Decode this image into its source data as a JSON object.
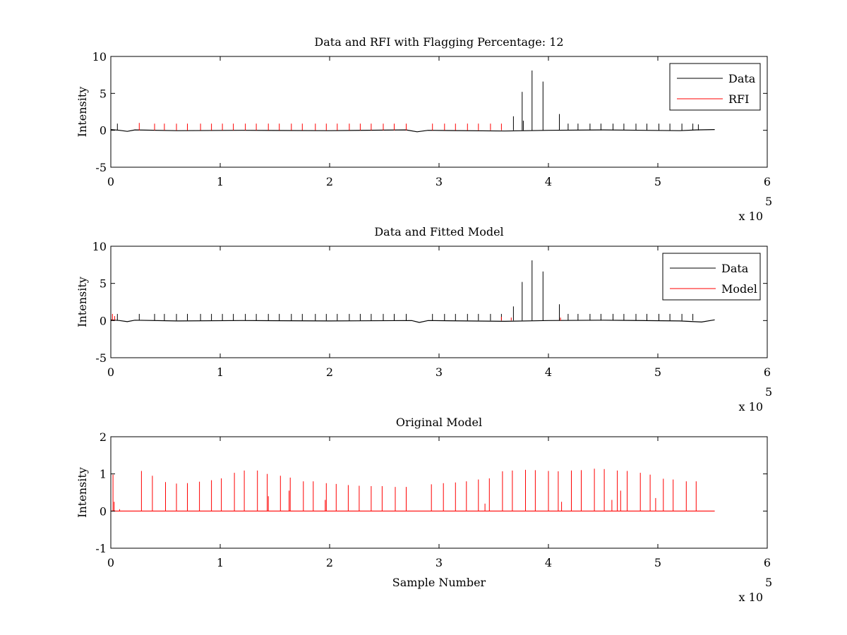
{
  "figure": {
    "background": "#ffffff",
    "colors": {
      "data": "#000000",
      "rfi": "#ff0000",
      "model": "#ff0000"
    }
  },
  "chart_data": [
    {
      "type": "line",
      "title": "Data and RFI with Flagging Percentage: 12",
      "xlabel": "",
      "ylabel": "Intensity",
      "xlim": [
        0,
        600000
      ],
      "ylim": [
        -5,
        10
      ],
      "xticks": [
        0,
        1,
        2,
        3,
        4,
        5,
        6
      ],
      "yticks": [
        -5,
        0,
        5,
        10
      ],
      "x_exponent_label": "x 10",
      "x_exponent_power": "5",
      "legend": {
        "position": "top-right",
        "entries": [
          "Data",
          "RFI"
        ]
      },
      "grid": false,
      "series": [
        {
          "name": "Data",
          "color": "#000000",
          "baseline": [
            [
              0,
              0.1
            ],
            [
              8000,
              0
            ],
            [
              15000,
              -0.15
            ],
            [
              22000,
              0.05
            ],
            [
              60000,
              -0.05
            ],
            [
              120000,
              0
            ],
            [
              200000,
              -0.05
            ],
            [
              270000,
              0.05
            ],
            [
              280000,
              -0.2
            ],
            [
              290000,
              0
            ],
            [
              360000,
              -0.1
            ],
            [
              400000,
              0
            ],
            [
              450000,
              0.05
            ],
            [
              520000,
              -0.05
            ],
            [
              535000,
              0.05
            ],
            [
              552000,
              0.1
            ]
          ],
          "spikes": [
            [
              6000,
              0.9
            ],
            [
              368000,
              1.9
            ],
            [
              376000,
              5.2
            ],
            [
              377000,
              1.3
            ],
            [
              385000,
              8.1
            ],
            [
              395000,
              6.6
            ],
            [
              410000,
              2.2
            ],
            [
              418000,
              0.9
            ],
            [
              427000,
              0.9
            ],
            [
              438000,
              0.9
            ],
            [
              448000,
              0.9
            ],
            [
              459000,
              0.9
            ],
            [
              469000,
              0.9
            ],
            [
              480000,
              0.9
            ],
            [
              490000,
              0.9
            ],
            [
              501000,
              0.9
            ],
            [
              511000,
              0.9
            ],
            [
              522000,
              0.9
            ],
            [
              532000,
              0.9
            ],
            [
              537000,
              0.8
            ]
          ]
        },
        {
          "name": "RFI",
          "color": "#ff0000",
          "spikes": [
            [
              26000,
              1.0
            ],
            [
              40000,
              0.9
            ],
            [
              49000,
              0.9
            ],
            [
              60000,
              0.9
            ],
            [
              70000,
              0.9
            ],
            [
              82000,
              0.9
            ],
            [
              92000,
              0.9
            ],
            [
              102000,
              0.9
            ],
            [
              112000,
              0.9
            ],
            [
              123000,
              0.9
            ],
            [
              133000,
              0.9
            ],
            [
              144000,
              0.9
            ],
            [
              154000,
              0.9
            ],
            [
              165000,
              0.9
            ],
            [
              175000,
              0.9
            ],
            [
              187000,
              0.9
            ],
            [
              197000,
              0.9
            ],
            [
              207000,
              0.9
            ],
            [
              218000,
              0.9
            ],
            [
              228000,
              0.9
            ],
            [
              238000,
              0.9
            ],
            [
              249000,
              0.9
            ],
            [
              259000,
              0.9
            ],
            [
              270000,
              0.9
            ],
            [
              294000,
              0.9
            ],
            [
              305000,
              0.9
            ],
            [
              315000,
              0.9
            ],
            [
              326000,
              0.9
            ],
            [
              336000,
              0.9
            ],
            [
              347000,
              0.9
            ],
            [
              357000,
              0.9
            ]
          ]
        }
      ]
    },
    {
      "type": "line",
      "title": "Data and Fitted Model",
      "xlabel": "",
      "ylabel": "Intensity",
      "xlim": [
        0,
        600000
      ],
      "ylim": [
        -5,
        10
      ],
      "xticks": [
        0,
        1,
        2,
        3,
        4,
        5,
        6
      ],
      "yticks": [
        -5,
        0,
        5,
        10
      ],
      "x_exponent_label": "x 10",
      "x_exponent_power": "5",
      "legend": {
        "position": "top-right",
        "entries": [
          "Data",
          "Model"
        ]
      },
      "grid": false,
      "series": [
        {
          "name": "Data",
          "color": "#000000",
          "baseline": [
            [
              0,
              0.1
            ],
            [
              8000,
              0
            ],
            [
              15000,
              -0.15
            ],
            [
              22000,
              0.05
            ],
            [
              60000,
              -0.05
            ],
            [
              120000,
              0
            ],
            [
              200000,
              -0.05
            ],
            [
              275000,
              0
            ],
            [
              282000,
              -0.25
            ],
            [
              290000,
              0
            ],
            [
              360000,
              -0.1
            ],
            [
              400000,
              0
            ],
            [
              450000,
              0.05
            ],
            [
              520000,
              -0.05
            ],
            [
              540000,
              -0.2
            ],
            [
              552000,
              0.1
            ]
          ],
          "spikes": [
            [
              6000,
              0.9
            ],
            [
              26000,
              0.9
            ],
            [
              40000,
              0.9
            ],
            [
              49000,
              0.9
            ],
            [
              60000,
              0.9
            ],
            [
              70000,
              0.9
            ],
            [
              82000,
              0.9
            ],
            [
              92000,
              0.9
            ],
            [
              102000,
              0.9
            ],
            [
              112000,
              0.9
            ],
            [
              123000,
              0.9
            ],
            [
              133000,
              0.9
            ],
            [
              144000,
              0.9
            ],
            [
              154000,
              0.9
            ],
            [
              165000,
              0.9
            ],
            [
              175000,
              0.9
            ],
            [
              187000,
              0.9
            ],
            [
              197000,
              0.9
            ],
            [
              207000,
              0.9
            ],
            [
              218000,
              0.9
            ],
            [
              228000,
              0.9
            ],
            [
              238000,
              0.9
            ],
            [
              249000,
              0.9
            ],
            [
              259000,
              0.9
            ],
            [
              270000,
              0.9
            ],
            [
              294000,
              0.9
            ],
            [
              305000,
              0.9
            ],
            [
              315000,
              0.9
            ],
            [
              326000,
              0.9
            ],
            [
              336000,
              0.9
            ],
            [
              347000,
              0.9
            ],
            [
              357000,
              0.9
            ],
            [
              368000,
              1.9
            ],
            [
              376000,
              5.2
            ],
            [
              385000,
              8.1
            ],
            [
              395000,
              6.6
            ],
            [
              410000,
              2.2
            ],
            [
              418000,
              0.9
            ],
            [
              427000,
              0.9
            ],
            [
              438000,
              0.9
            ],
            [
              448000,
              0.9
            ],
            [
              459000,
              0.9
            ],
            [
              469000,
              0.9
            ],
            [
              480000,
              0.9
            ],
            [
              490000,
              0.9
            ],
            [
              501000,
              0.9
            ],
            [
              511000,
              0.9
            ],
            [
              522000,
              0.9
            ],
            [
              532000,
              0.9
            ]
          ]
        },
        {
          "name": "Model",
          "color": "#ff0000",
          "spikes": [
            [
              1500,
              0.9
            ],
            [
              3500,
              0.6
            ],
            [
              357000,
              0.5
            ],
            [
              366000,
              0.4
            ],
            [
              411000,
              0.4
            ]
          ]
        }
      ]
    },
    {
      "type": "line",
      "title": "Original Model",
      "xlabel": "Sample Number",
      "ylabel": "Intensity",
      "xlim": [
        0,
        600000
      ],
      "ylim": [
        -1,
        2
      ],
      "xticks": [
        0,
        1,
        2,
        3,
        4,
        5,
        6
      ],
      "yticks": [
        -1,
        0,
        1,
        2
      ],
      "x_exponent_label": "x 10",
      "x_exponent_power": "5",
      "legend": null,
      "grid": false,
      "series": [
        {
          "color": "#ff0000",
          "baseline": [
            [
              0,
              0
            ],
            [
              552000,
              0
            ]
          ],
          "spikes": [
            [
              2000,
              0.98
            ],
            [
              3000,
              0.25
            ],
            [
              8000,
              0.05
            ],
            [
              28000,
              1.08
            ],
            [
              38000,
              0.95
            ],
            [
              50000,
              0.78
            ],
            [
              60000,
              0.74
            ],
            [
              70000,
              0.75
            ],
            [
              81000,
              0.79
            ],
            [
              92000,
              0.83
            ],
            [
              101000,
              0.88
            ],
            [
              113000,
              1.03
            ],
            [
              122000,
              1.09
            ],
            [
              134000,
              1.09
            ],
            [
              143000,
              1.0
            ],
            [
              155000,
              0.95
            ],
            [
              164000,
              0.9
            ],
            [
              176000,
              0.8
            ],
            [
              185000,
              0.8
            ],
            [
              197000,
              0.75
            ],
            [
              206000,
              0.73
            ],
            [
              217000,
              0.7
            ],
            [
              227000,
              0.68
            ],
            [
              238000,
              0.67
            ],
            [
              248000,
              0.67
            ],
            [
              260000,
              0.65
            ],
            [
              270000,
              0.65
            ],
            [
              293000,
              0.72
            ],
            [
              304000,
              0.75
            ],
            [
              315000,
              0.77
            ],
            [
              325000,
              0.8
            ],
            [
              336000,
              0.85
            ],
            [
              346000,
              0.88
            ],
            [
              358000,
              1.07
            ],
            [
              367000,
              1.09
            ],
            [
              379000,
              1.11
            ],
            [
              388000,
              1.1
            ],
            [
              400000,
              1.08
            ],
            [
              409000,
              1.07
            ],
            [
              421000,
              1.09
            ],
            [
              430000,
              1.1
            ],
            [
              442000,
              1.14
            ],
            [
              451000,
              1.13
            ],
            [
              463000,
              1.09
            ],
            [
              472000,
              1.08
            ],
            [
              484000,
              1.03
            ],
            [
              493000,
              0.98
            ],
            [
              505000,
              0.87
            ],
            [
              514000,
              0.85
            ],
            [
              526000,
              0.8
            ],
            [
              535000,
              0.8
            ],
            [
              466000,
              0.55
            ],
            [
              458000,
              0.3
            ],
            [
              498000,
              0.35
            ],
            [
              412000,
              0.25
            ],
            [
              342000,
              0.2
            ],
            [
              196000,
              0.3
            ],
            [
              144000,
              0.4
            ],
            [
              163000,
              0.55
            ]
          ]
        }
      ]
    }
  ]
}
